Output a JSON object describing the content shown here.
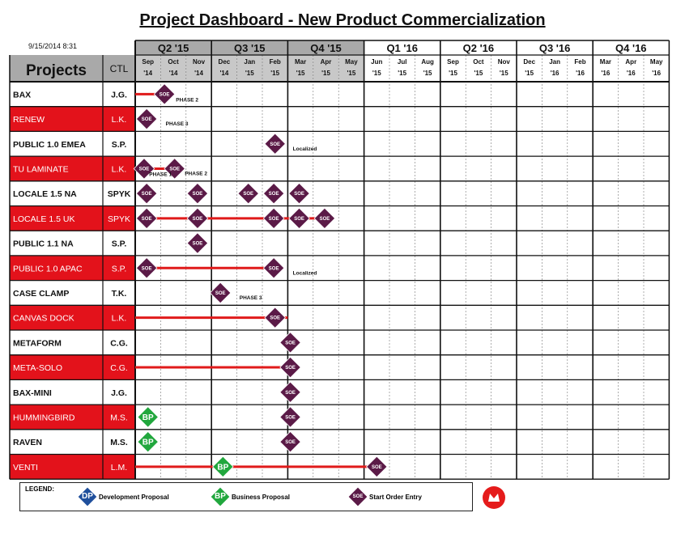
{
  "title": "Project Dashboard - New Product Commercialization",
  "date_stamp": "9/15/2014 8:31",
  "header": {
    "projects_label": "Projects",
    "ctl_label": "CTL"
  },
  "quarters": [
    "Q2 '15",
    "Q3 '15",
    "Q4 '15",
    "Q1 '16",
    "Q2 '16",
    "Q3 '16",
    "Q4 '16"
  ],
  "months": [
    {
      "m": "Sep",
      "y": "'14"
    },
    {
      "m": "Oct",
      "y": "'14"
    },
    {
      "m": "Nov",
      "y": "'14"
    },
    {
      "m": "Dec",
      "y": "'14"
    },
    {
      "m": "Jan",
      "y": "'15"
    },
    {
      "m": "Feb",
      "y": "'15"
    },
    {
      "m": "Mar",
      "y": "'15"
    },
    {
      "m": "Apr",
      "y": "'15"
    },
    {
      "m": "May",
      "y": "'15"
    },
    {
      "m": "Jun",
      "y": "'15"
    },
    {
      "m": "Jul",
      "y": "'15"
    },
    {
      "m": "Aug",
      "y": "'15"
    },
    {
      "m": "Sep",
      "y": "'15"
    },
    {
      "m": "Oct",
      "y": "'15"
    },
    {
      "m": "Nov",
      "y": "'15"
    },
    {
      "m": "Dec",
      "y": "'15"
    },
    {
      "m": "Jan",
      "y": "'16"
    },
    {
      "m": "Feb",
      "y": "'16"
    },
    {
      "m": "Mar",
      "y": "'16"
    },
    {
      "m": "Apr",
      "y": "'16"
    },
    {
      "m": "May",
      "y": "'16"
    }
  ],
  "colors": {
    "red": "#e3121b",
    "soe": "#5b1a47",
    "bp": "#21a73d",
    "dp": "#1f4f9c",
    "shade": "#a9a9a9",
    "line": "#e01a1a"
  },
  "projects": [
    {
      "name": "BAX",
      "ctl": "J.G.",
      "highlight": false,
      "bars": [
        [
          0,
          1.15
        ]
      ],
      "milestones": [
        {
          "type": "SOE",
          "col": 1.15
        }
      ],
      "notes": [
        {
          "text": "PHASE 2",
          "col": 1.6,
          "dy": 9
        }
      ]
    },
    {
      "name": "RENEW",
      "ctl": "L.K.",
      "highlight": true,
      "bars": [],
      "milestones": [
        {
          "type": "SOE",
          "col": 0.45
        }
      ],
      "notes": [
        {
          "text": "PHASE 3",
          "col": 1.2,
          "dy": 8
        }
      ]
    },
    {
      "name": "PUBLIC 1.0 EMEA",
      "ctl": "S.P.",
      "highlight": false,
      "bars": [],
      "milestones": [
        {
          "type": "SOE",
          "col": 5.5
        }
      ],
      "notes": [
        {
          "text": "Localized",
          "col": 6.2,
          "dy": 8
        }
      ]
    },
    {
      "name": "TU LAMINATE",
      "ctl": "L.K.",
      "highlight": true,
      "bars": [
        [
          0.35,
          1.55
        ]
      ],
      "milestones": [
        {
          "type": "SOE",
          "col": 0.35
        },
        {
          "type": "SOE",
          "col": 1.55
        }
      ],
      "notes": [
        {
          "text": "PHASE 1",
          "col": 0.55,
          "dy": 9
        },
        {
          "text": "PHASE 2",
          "col": 1.95,
          "dy": 8
        }
      ]
    },
    {
      "name": "LOCALE 1.5 NA",
      "ctl": "SPYK",
      "highlight": false,
      "bars": [],
      "milestones": [
        {
          "type": "SOE",
          "col": 0.45
        },
        {
          "type": "SOE",
          "col": 2.45
        },
        {
          "type": "SOE",
          "col": 4.45
        },
        {
          "type": "SOE",
          "col": 5.45
        },
        {
          "type": "SOE",
          "col": 6.45
        }
      ],
      "notes": []
    },
    {
      "name": "LOCALE 1.5 UK",
      "ctl": "SPYK",
      "highlight": true,
      "bars": [
        [
          0.45,
          7.45
        ]
      ],
      "milestones": [
        {
          "type": "SOE",
          "col": 0.45
        },
        {
          "type": "SOE",
          "col": 2.45
        },
        {
          "type": "SOE",
          "col": 5.45
        },
        {
          "type": "SOE",
          "col": 6.45
        },
        {
          "type": "SOE",
          "col": 7.45
        }
      ],
      "notes": []
    },
    {
      "name": "PUBLIC 1.1 NA",
      "ctl": "S.P.",
      "highlight": false,
      "bars": [],
      "milestones": [
        {
          "type": "SOE",
          "col": 2.45
        }
      ],
      "notes": []
    },
    {
      "name": "PUBLIC 1.0 APAC",
      "ctl": "S.P.",
      "highlight": true,
      "bars": [
        [
          0.45,
          5.45
        ]
      ],
      "milestones": [
        {
          "type": "SOE",
          "col": 0.45
        },
        {
          "type": "SOE",
          "col": 5.45
        }
      ],
      "notes": [
        {
          "text": "Localized",
          "col": 6.2,
          "dy": 8
        }
      ]
    },
    {
      "name": "CASE CLAMP",
      "ctl": "T.K.",
      "highlight": false,
      "bars": [],
      "milestones": [
        {
          "type": "SOE",
          "col": 3.35
        }
      ],
      "notes": [
        {
          "text": "PHASE 3",
          "col": 4.1,
          "dy": 8
        }
      ]
    },
    {
      "name": "CANVAS DOCK",
      "ctl": "L.K.",
      "highlight": true,
      "bars": [
        [
          0,
          6
        ]
      ],
      "milestones": [
        {
          "type": "SOE",
          "col": 5.5
        }
      ],
      "notes": []
    },
    {
      "name": "METAFORM",
      "ctl": "C.G.",
      "highlight": false,
      "bars": [],
      "milestones": [
        {
          "type": "SOE",
          "col": 6.1
        }
      ],
      "notes": []
    },
    {
      "name": "META-SOLO",
      "ctl": "C.G.",
      "highlight": true,
      "bars": [
        [
          0,
          6.1
        ]
      ],
      "milestones": [
        {
          "type": "SOE",
          "col": 6.1
        }
      ],
      "notes": []
    },
    {
      "name": "BAX-MINI",
      "ctl": "J.G.",
      "highlight": false,
      "bars": [],
      "milestones": [
        {
          "type": "SOE",
          "col": 6.1
        }
      ],
      "notes": []
    },
    {
      "name": "HUMMINGBIRD",
      "ctl": "M.S.",
      "highlight": true,
      "bars": [],
      "milestones": [
        {
          "type": "BP",
          "col": 0.5
        },
        {
          "type": "SOE",
          "col": 6.1
        }
      ],
      "notes": []
    },
    {
      "name": "RAVEN",
      "ctl": "M.S.",
      "highlight": false,
      "bars": [],
      "milestones": [
        {
          "type": "BP",
          "col": 0.5
        },
        {
          "type": "SOE",
          "col": 6.1
        }
      ],
      "notes": []
    },
    {
      "name": "VENTI",
      "ctl": "L.M.",
      "highlight": true,
      "bars": [
        [
          0,
          9.5
        ]
      ],
      "milestones": [
        {
          "type": "BP",
          "col": 3.45
        },
        {
          "type": "SOE",
          "col": 9.5
        }
      ],
      "notes": []
    }
  ],
  "legend": {
    "label": "LEGEND:",
    "items": [
      {
        "type": "DP",
        "text": "Development Proposal"
      },
      {
        "type": "BP",
        "text": "Business Proposal"
      },
      {
        "type": "SOE",
        "text": "Start Order Entry"
      }
    ]
  }
}
